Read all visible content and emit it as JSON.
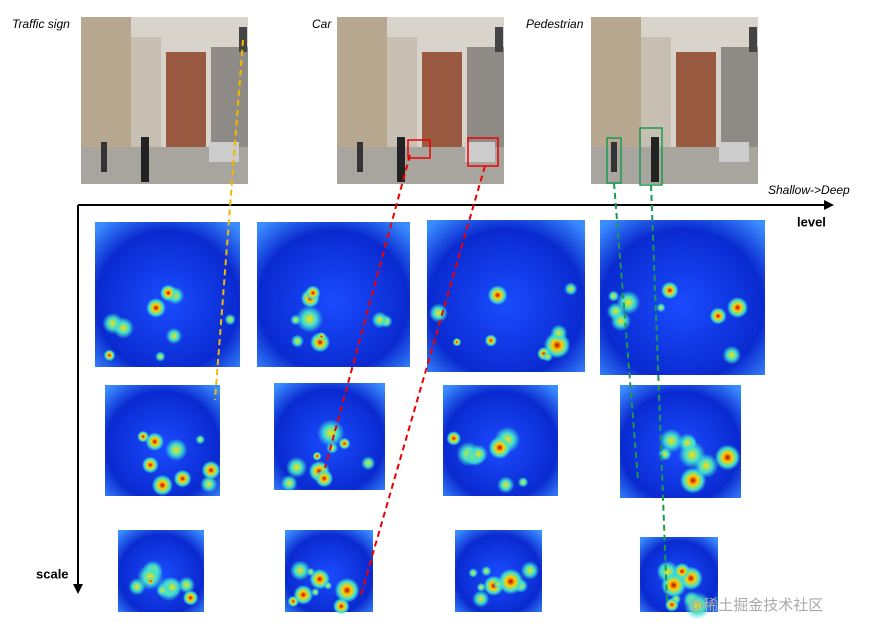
{
  "photos": [
    {
      "label": "Traffic sign"
    },
    {
      "label": "Car"
    },
    {
      "label": "Pedestrian"
    }
  ],
  "axes": {
    "horizontal_note": "Shallow->Deep",
    "horizontal": "level",
    "vertical": "scale"
  },
  "watermark": "@稀土掘金技术社区"
}
